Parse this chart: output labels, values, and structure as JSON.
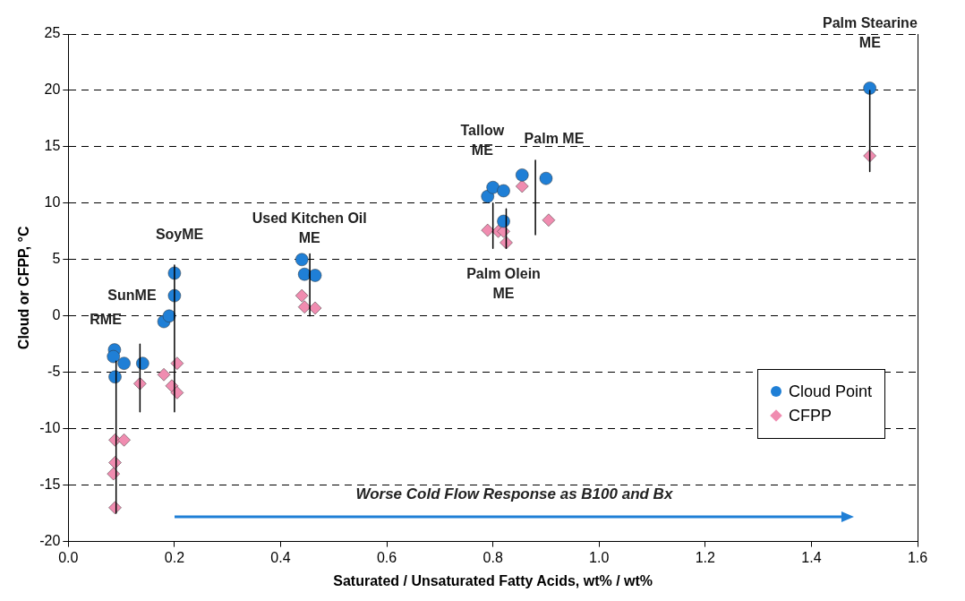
{
  "chart_data": {
    "type": "scatter",
    "xlabel": "Saturated / Unsaturated Fatty Acids, wt% / wt%",
    "ylabel": "Cloud or CFPP, °C",
    "xlim": [
      0,
      1.6
    ],
    "xticks": [
      {
        "value": 0,
        "label": "0.0"
      },
      0.2,
      0.4,
      0.6,
      0.8,
      {
        "value": 1,
        "label": "1.0"
      },
      1.2,
      1.4,
      1.6
    ],
    "ylim": [
      -20,
      25
    ],
    "yticks": [
      -20,
      -15,
      -10,
      -5,
      0,
      5,
      10,
      15,
      20,
      25
    ],
    "grid": "y",
    "legend": "bottom right",
    "series": [
      {
        "type": "line",
        "color": "#000000",
        "marker": "none",
        "x": [
          0.09,
          0.09
        ],
        "values": [
          -4,
          -17.5
        ]
      },
      {
        "type": "line",
        "color": "#000000",
        "marker": "none",
        "x": [
          0.135,
          0.135
        ],
        "values": [
          -2.5,
          -8.5
        ]
      },
      {
        "type": "line",
        "color": "#000000",
        "marker": "none",
        "x": [
          0.2,
          0.2
        ],
        "values": [
          4.5,
          -8.5
        ]
      },
      {
        "type": "line",
        "color": "#000000",
        "marker": "none",
        "x": [
          0.455,
          0.455
        ],
        "values": [
          5.5,
          0
        ]
      },
      {
        "type": "line",
        "color": "#000000",
        "marker": "none",
        "x": [
          0.8,
          0.8
        ],
        "values": [
          10,
          6
        ]
      },
      {
        "type": "line",
        "color": "#000000",
        "marker": "none",
        "x": [
          0.825,
          0.825
        ],
        "values": [
          9.5,
          6
        ]
      },
      {
        "type": "line",
        "color": "#000000",
        "marker": "none",
        "x": [
          0.88,
          0.88
        ],
        "values": [
          13.8,
          7.2
        ]
      },
      {
        "type": "line",
        "color": "#000000",
        "marker": "none",
        "x": [
          1.51,
          1.51
        ],
        "values": [
          20,
          12.8
        ]
      },
      {
        "name": "Cloud Point",
        "color": "#1f7fd6",
        "marker": "circle",
        "x": [
          0.087,
          0.085,
          0.088,
          0.105,
          0.14,
          0.18,
          0.19,
          0.2,
          0.2,
          0.44,
          0.445,
          0.465,
          0.79,
          0.8,
          0.82,
          0.82,
          0.855,
          0.9,
          1.51
        ],
        "values": [
          -3,
          -3.6,
          -5.4,
          -4.2,
          -4.2,
          -0.5,
          0,
          1.8,
          3.8,
          5,
          3.7,
          3.6,
          10.6,
          11.4,
          11.1,
          8.4,
          12.5,
          12.2,
          20.2
        ]
      },
      {
        "name": "CFPP",
        "color": "#f08cb0",
        "marker": "diamond",
        "x": [
          0.088,
          0.105,
          0.088,
          0.085,
          0.088,
          0.135,
          0.18,
          0.195,
          0.205,
          0.205,
          0.44,
          0.445,
          0.465,
          0.79,
          0.81,
          0.82,
          0.825,
          0.855,
          0.905,
          1.51
        ],
        "values": [
          -11,
          -11,
          -13,
          -14,
          -17,
          -6,
          -5.2,
          -6.2,
          -6.8,
          -4.2,
          1.8,
          0.8,
          0.7,
          7.6,
          7.5,
          7.5,
          6.5,
          11.5,
          8.5,
          14.2
        ]
      }
    ],
    "annotations": [
      "RME",
      "SunME",
      "SoyME",
      "Used Kitchen Oil\nME",
      "Tallow\nME",
      "Palm ME",
      "Palm Olein\nME",
      "Palm Stearine\nME",
      "Worse Cold Flow Response as B100 and Bx"
    ]
  }
}
